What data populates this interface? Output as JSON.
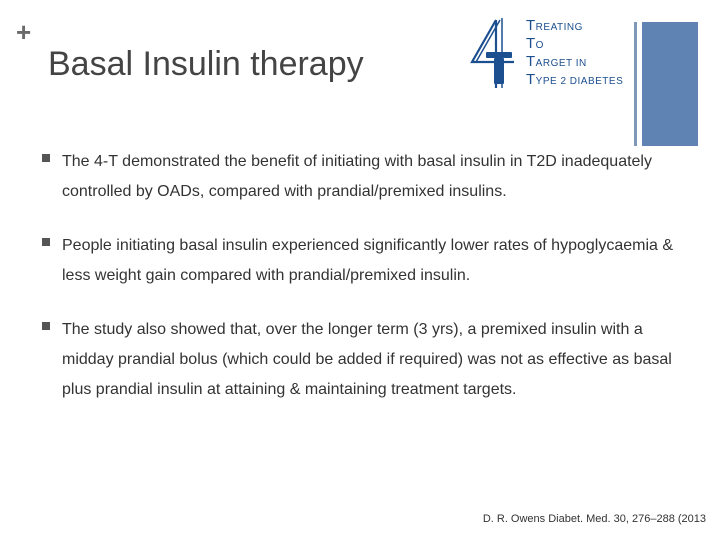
{
  "slide": {
    "title": "Basal Insulin therapy"
  },
  "logo": {
    "numeral": "4",
    "lines": [
      {
        "cap": "T",
        "rest": "REATING"
      },
      {
        "cap": "T",
        "rest": "O"
      },
      {
        "cap": "T",
        "rest": "ARGET IN"
      },
      {
        "cap": "T",
        "rest": "YPE 2 DIABETES"
      }
    ],
    "color": "#1c4f8f"
  },
  "bullets": [
    {
      "text": "The 4-T demonstrated the benefit of initiating with basal insulin in T2D inadequately controlled by OADs, compared with prandial/premixed insulins."
    },
    {
      "text": "People initiating basal insulin experienced significantly lower rates of hypoglycaemia & less weight gain compared with prandial/premixed insulin."
    },
    {
      "text": "The study also showed that, over the longer term (3 yrs), a premixed insulin with a midday prandial bolus (which could be added if required) was not as effective as basal plus prandial insulin at attaining & maintaining treatment targets."
    }
  ],
  "citation": "D. R. Owens Diabet. Med. 30, 276–288 (2013",
  "colors": {
    "accent_bar": "#5f84b3",
    "accent_thin": "#7f98b7",
    "title": "#444444"
  }
}
